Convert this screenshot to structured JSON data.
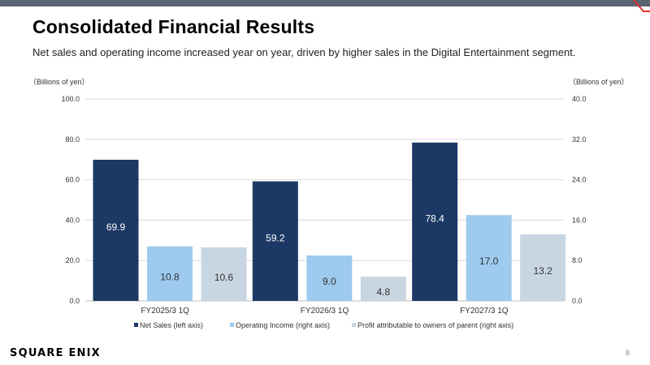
{
  "slide": {
    "title": "Consolidated Financial Results",
    "subtitle": "Net sales and operating income increased year on year, driven by higher sales in the Digital Entertainment segment.",
    "logo": "SQUARE ENIX",
    "page_number": "8"
  },
  "colors": {
    "top_bar": "#5a6472",
    "accent": "#e0302d",
    "net_sales": "#1c3864",
    "operating_income": "#9dcaee",
    "profit": "#c8d6e2",
    "grid": "#d9d9d9"
  },
  "chart_data": {
    "type": "bar",
    "categories": [
      "FY2025/3 1Q",
      "FY2026/3 1Q",
      "FY2027/3 1Q"
    ],
    "left_axis": {
      "label": "（Billions of yen）",
      "range": [
        0,
        100
      ],
      "ticks": [
        "0.0",
        "20.0",
        "40.0",
        "60.0",
        "80.0",
        "100.0"
      ]
    },
    "right_axis": {
      "label": "（Billions of yen）",
      "range": [
        0,
        40
      ],
      "ticks": [
        "0.0",
        "8.0",
        "16.0",
        "24.0",
        "32.0",
        "40.0"
      ]
    },
    "series": [
      {
        "name": "Net Sales (left axis)",
        "axis": "left",
        "values": [
          69.9,
          59.2,
          78.4
        ],
        "labels": [
          "69.9",
          "59.2",
          "78.4"
        ],
        "color": "#1c3864",
        "label_color": "#ffffff"
      },
      {
        "name": "Operating Income (right axis)",
        "axis": "right",
        "values": [
          10.8,
          9.0,
          17.0
        ],
        "labels": [
          "10.8",
          "9.0",
          "17.0"
        ],
        "color": "#9dcaee",
        "label_color": "#333333"
      },
      {
        "name": "Profit attributable to owners of parent (right axis)",
        "axis": "right",
        "values": [
          10.6,
          4.8,
          13.2
        ],
        "labels": [
          "10.6",
          "4.8",
          "13.2"
        ],
        "color": "#c8d6e2",
        "label_color": "#333333"
      }
    ],
    "grid": true,
    "legend_position": "bottom"
  }
}
